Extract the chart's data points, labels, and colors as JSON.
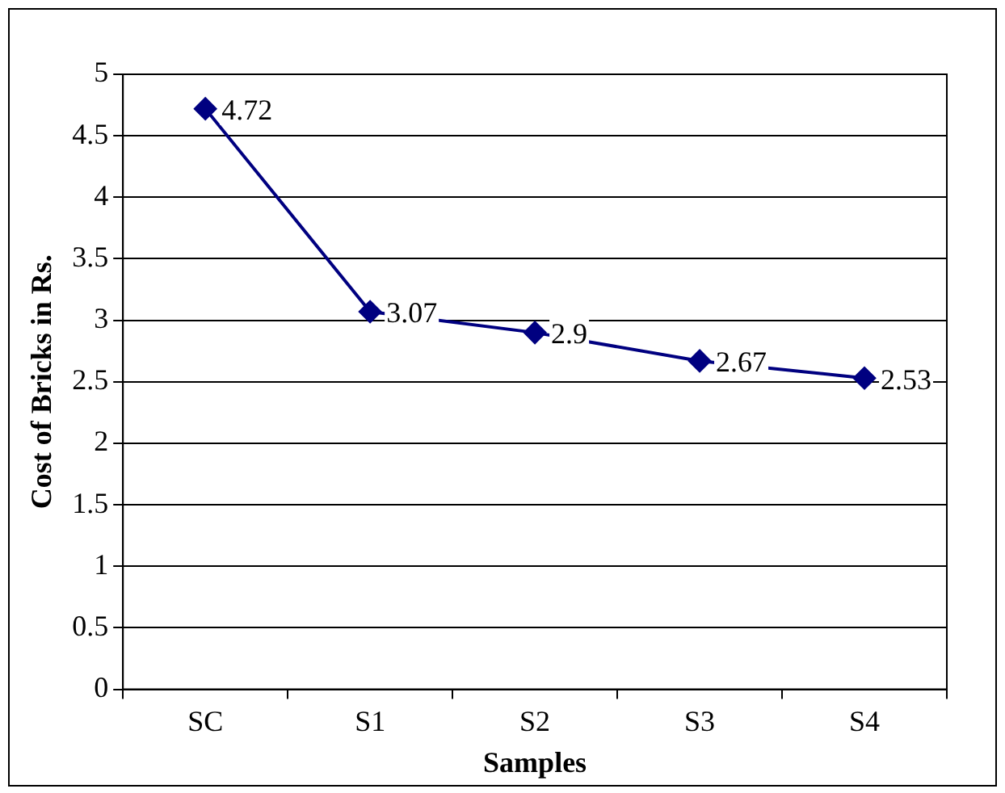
{
  "chart_data": {
    "type": "line",
    "xlabel": "Samples",
    "ylabel": "Cost of Bricks in Rs.",
    "categories": [
      "SC",
      "S1",
      "S2",
      "S3",
      "S4"
    ],
    "series": [
      {
        "color": "#000080",
        "values": [
          4.72,
          3.07,
          2.9,
          2.67,
          2.53
        ]
      }
    ],
    "ylim": [
      0,
      5
    ],
    "yticks": [
      0,
      0.5,
      1,
      1.5,
      2,
      2.5,
      3,
      3.5,
      4,
      4.5,
      5
    ],
    "grid": "y",
    "legend": false,
    "marker": "diamond",
    "line_style": "solid",
    "data_labels": true
  }
}
